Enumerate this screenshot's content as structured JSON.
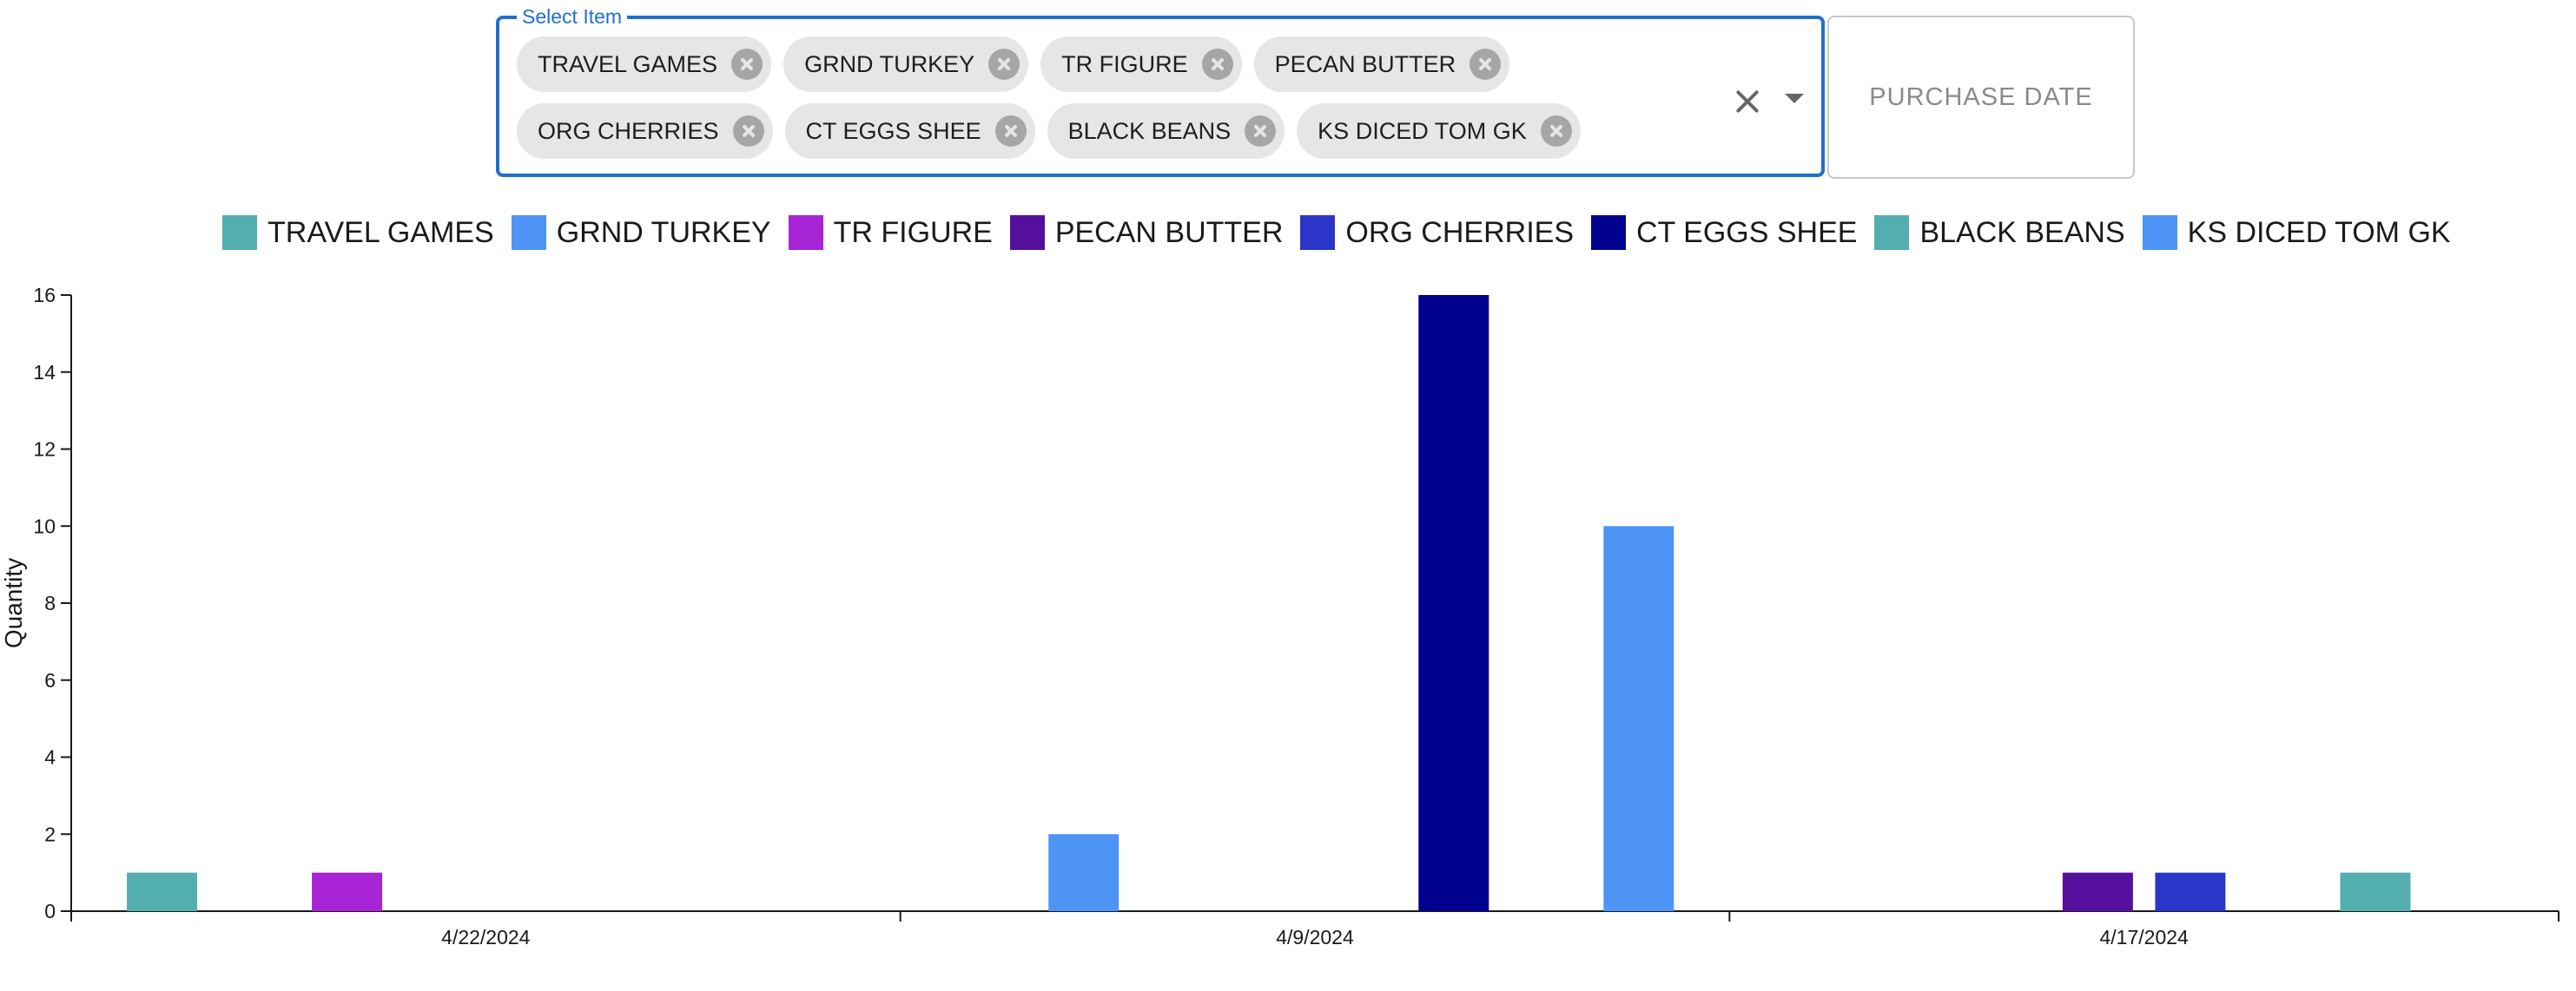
{
  "select": {
    "label": "Select Item",
    "chips": [
      {
        "label": "TRAVEL GAMES"
      },
      {
        "label": "GRND TURKEY"
      },
      {
        "label": "TR FIGURE"
      },
      {
        "label": "PECAN BUTTER"
      },
      {
        "label": "ORG CHERRIES"
      },
      {
        "label": "CT EGGS SHEE"
      },
      {
        "label": "BLACK BEANS"
      },
      {
        "label": "KS DICED TOM GK"
      }
    ],
    "clear_icon": "close-icon",
    "dropdown_icon": "caret-down-icon"
  },
  "date_button": {
    "label": "PURCHASE DATE"
  },
  "chart_data": {
    "type": "bar",
    "ylabel": "Quantity",
    "xlabel": "",
    "ylim": [
      0,
      16
    ],
    "yticks": [
      0,
      2,
      4,
      6,
      8,
      10,
      12,
      14,
      16
    ],
    "categories": [
      "4/22/2024",
      "4/9/2024",
      "4/17/2024"
    ],
    "legend_position": "top-center",
    "grid": false,
    "series": [
      {
        "name": "TRAVEL GAMES",
        "color": "#52aeaf",
        "values": [
          1,
          null,
          null
        ]
      },
      {
        "name": "GRND TURKEY",
        "color": "#4d94f6",
        "values": [
          null,
          2,
          null
        ]
      },
      {
        "name": "TR FIGURE",
        "color": "#a623d6",
        "values": [
          1,
          null,
          null
        ]
      },
      {
        "name": "PECAN BUTTER",
        "color": "#540f9c",
        "values": [
          null,
          null,
          1
        ]
      },
      {
        "name": "ORG CHERRIES",
        "color": "#2a36c8",
        "values": [
          null,
          null,
          1
        ]
      },
      {
        "name": "CT EGGS SHEE",
        "color": "#00008e",
        "values": [
          null,
          16,
          null
        ]
      },
      {
        "name": "BLACK BEANS",
        "color": "#52aeaf",
        "values": [
          null,
          null,
          1
        ]
      },
      {
        "name": "KS DICED TOM GK",
        "color": "#4d94f6",
        "values": [
          null,
          10,
          null
        ]
      }
    ]
  }
}
